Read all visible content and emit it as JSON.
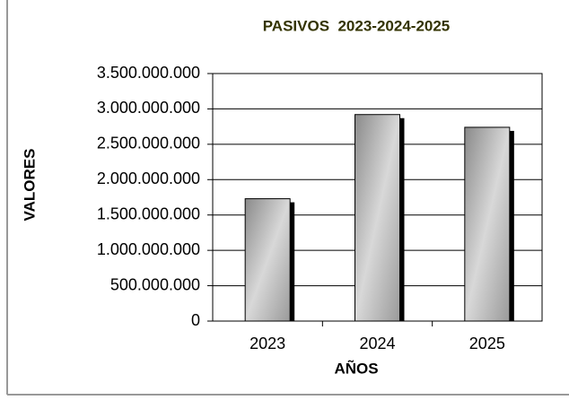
{
  "chart_data": {
    "type": "bar",
    "title": "PASIVOS  2023-2024-2025",
    "x_label": "AÑOS",
    "y_label": "VALORES",
    "categories": [
      "2023",
      "2024",
      "2025"
    ],
    "values": [
      1730000000,
      2920000000,
      2740000000
    ],
    "color": "#b0b0b0",
    "ylim": [
      0,
      3500000000
    ],
    "yticks": [
      0,
      {
        "value": 500000000,
        "label": "500.000.000"
      },
      {
        "value": 1000000000,
        "label": "1.000.000.000"
      },
      {
        "value": 1500000000,
        "label": "1.500.000.000"
      },
      {
        "value": 2000000000,
        "label": "2.000.000.000"
      },
      {
        "value": 2500000000,
        "label": "2.500.000.000"
      },
      {
        "value": 3000000000,
        "label": "3.000.000.000"
      },
      {
        "value": 3500000000,
        "label": "3.500.000.000"
      }
    ],
    "grid": true
  }
}
